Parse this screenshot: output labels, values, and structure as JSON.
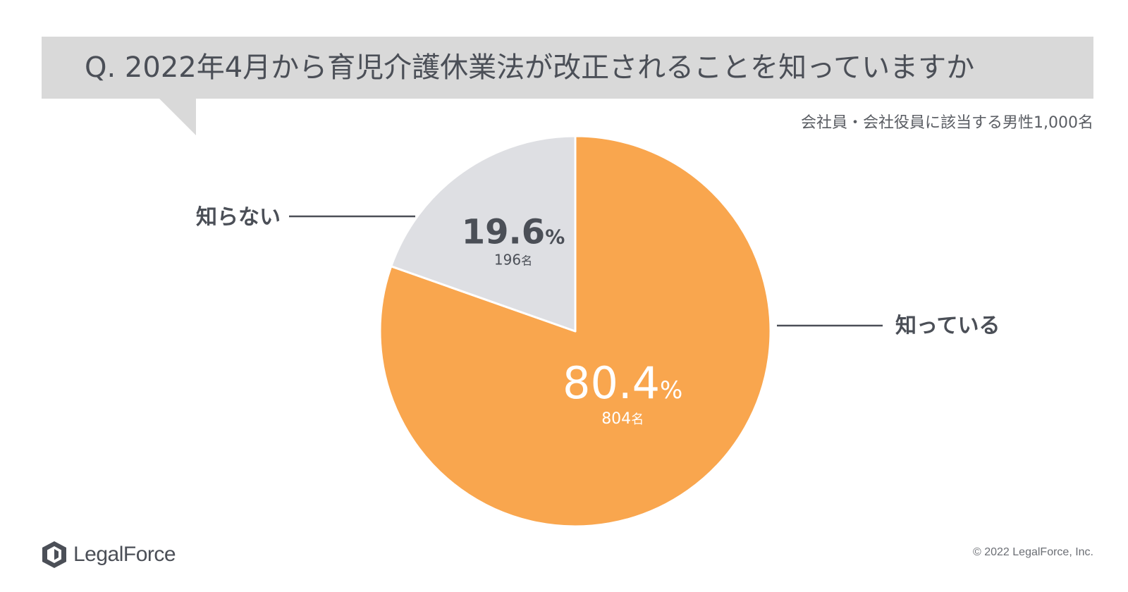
{
  "header": {
    "title": "Q. 2022年4月から育児介護休業法が改正されることを知っていますか",
    "subtitle": "会社員・会社役員に該当する男性1,000名"
  },
  "chart_data": {
    "type": "pie",
    "slices": [
      {
        "label": "知っている",
        "percent": "80.4",
        "percent_unit": "%",
        "count": "804",
        "count_unit": "名",
        "value": 80.4,
        "color": "#f9a64e"
      },
      {
        "label": "知らない",
        "percent": "19.6",
        "percent_unit": "%",
        "count": "196",
        "count_unit": "名",
        "value": 19.6,
        "color": "#dedfe3"
      }
    ],
    "start": "top, clockwise"
  },
  "footer": {
    "logo_text": "LegalForce",
    "copyright": "© 2022 LegalForce, Inc."
  },
  "colors": {
    "banner": "#d9d9d9",
    "text": "#4b4f57",
    "known": "#f9a64e",
    "unknown": "#dedfe3",
    "leader": "#4b4f57"
  }
}
